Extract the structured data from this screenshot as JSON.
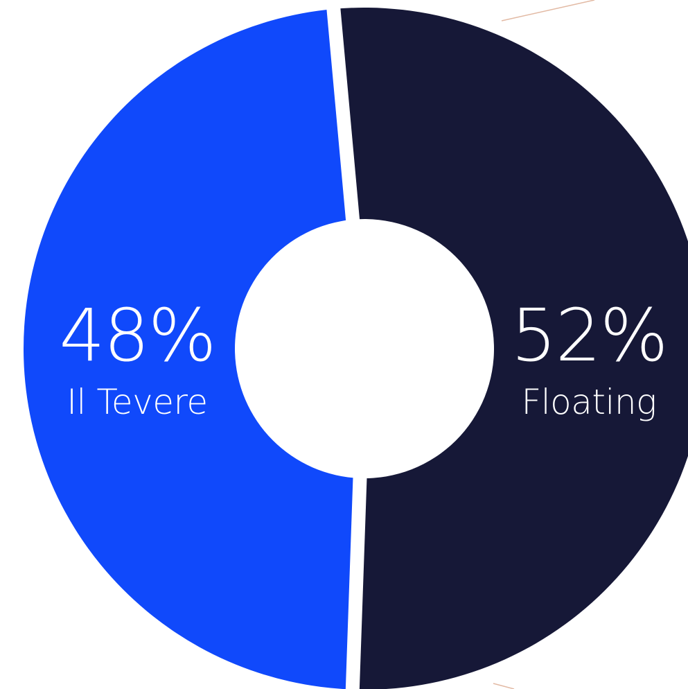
{
  "chart_data": {
    "type": "pie",
    "variant": "donut",
    "slices": [
      {
        "label": "Il Tevere",
        "value": 48,
        "display": "48%",
        "color": "#1049fb"
      },
      {
        "label": "Floating",
        "value": 52,
        "display": "52%",
        "color": "#161837"
      }
    ],
    "text_color": "#ffffff",
    "background": "#ffffff"
  }
}
